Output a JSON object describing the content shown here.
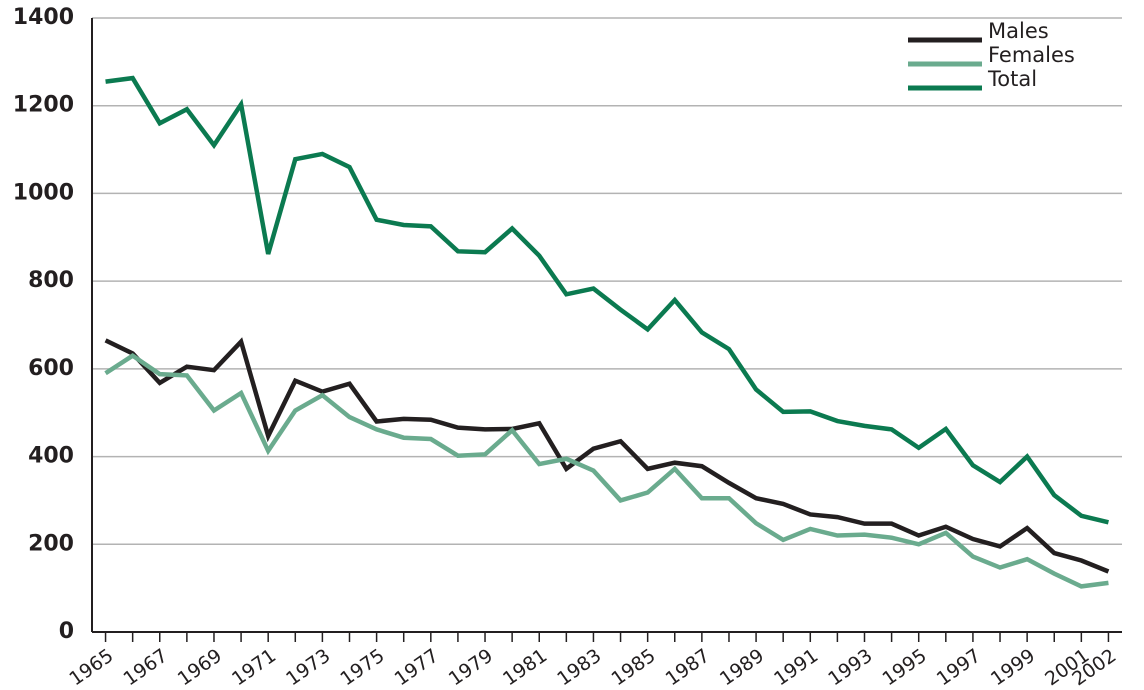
{
  "chart_data": {
    "type": "line",
    "x": [
      1965,
      1966,
      1967,
      1968,
      1969,
      1970,
      1971,
      1972,
      1973,
      1974,
      1975,
      1976,
      1977,
      1978,
      1979,
      1980,
      1981,
      1982,
      1983,
      1984,
      1985,
      1986,
      1987,
      1988,
      1989,
      1990,
      1991,
      1992,
      1993,
      1994,
      1995,
      1996,
      1997,
      1998,
      1999,
      2000,
      2001,
      2002
    ],
    "xlim": [
      1964.5,
      2002.5
    ],
    "xticks": [
      1965,
      1967,
      1969,
      1971,
      1973,
      1975,
      1977,
      1979,
      1981,
      1983,
      1985,
      1987,
      1989,
      1991,
      1993,
      1995,
      1997,
      1999,
      2001,
      2002
    ],
    "ylim": [
      0,
      1400
    ],
    "yticks": [
      0,
      200,
      400,
      600,
      800,
      1000,
      1200,
      1400
    ],
    "grid": true,
    "legend": "top-right",
    "series": [
      {
        "name": "Males",
        "color": "#231f20",
        "values": [
          665,
          635,
          568,
          605,
          597,
          662,
          447,
          573,
          548,
          566,
          480,
          486,
          484,
          466,
          462,
          463,
          476,
          372,
          418,
          435,
          372,
          386,
          378,
          340,
          305,
          292,
          268,
          262,
          247,
          247,
          220,
          240,
          212,
          195,
          237,
          180,
          163,
          138
        ]
      },
      {
        "name": "Females",
        "color": "#6aab8e",
        "values": [
          590,
          630,
          588,
          585,
          505,
          545,
          413,
          505,
          540,
          490,
          462,
          443,
          440,
          402,
          405,
          460,
          383,
          395,
          368,
          300,
          318,
          372,
          305,
          305,
          248,
          210,
          235,
          220,
          222,
          215,
          200,
          226,
          172,
          147,
          166,
          133,
          104,
          112
        ]
      },
      {
        "name": "Total",
        "color": "#0b7a50",
        "values": [
          1255,
          1263,
          1160,
          1192,
          1110,
          1203,
          862,
          1078,
          1090,
          1060,
          940,
          928,
          925,
          868,
          866,
          920,
          858,
          770,
          783,
          735,
          690,
          757,
          683,
          645,
          553,
          502,
          503,
          481,
          470,
          462,
          420,
          463,
          380,
          342,
          400,
          312,
          265,
          250
        ]
      }
    ]
  }
}
